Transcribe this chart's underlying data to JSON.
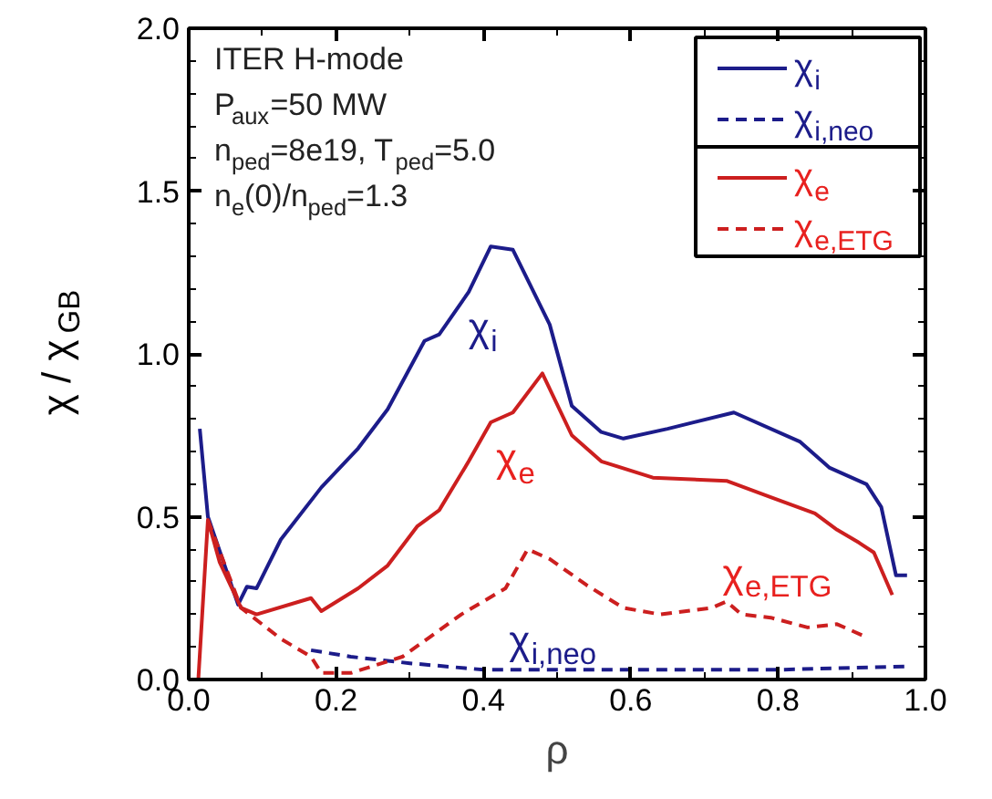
{
  "chart_data": {
    "type": "line",
    "xlabel": "ρ",
    "ylabel": "χ / χ$_{GB}$",
    "xlim": [
      0,
      1.0
    ],
    "ylim": [
      0,
      2.0
    ],
    "xticks": [
      {
        "value": 0,
        "label": "0.0"
      },
      0.2,
      0.4,
      0.6,
      0.8,
      {
        "value": 1.0,
        "label": "1.0"
      }
    ],
    "yticks": [
      {
        "value": 0,
        "label": "0.0"
      },
      0.5,
      {
        "value": 1.0,
        "label": "1.0"
      },
      1.5,
      {
        "value": 2.0,
        "label": "2.0"
      }
    ],
    "grid": false,
    "legend": "top right",
    "annotations": [
      "ITER H-mode",
      "P$_{aux}$=50 MW",
      "n$_{ped}$=8e19, T$_{ped}$=5.0",
      "n$_{e}$(0)/n$_{ped}$=1.3",
      {
        "text": "χ$_{i}$",
        "x": 0.345,
        "y": 1.08
      },
      {
        "text": "χ$_{e}$",
        "x": 0.3825,
        "y": 0.68
      },
      {
        "text": "χ$_{e,ETG}$",
        "x": 0.69,
        "y": 0.215
      },
      {
        "text": "χ$_{i,neo}$",
        "x": 0.4,
        "y": 0.03
      }
    ],
    "series": [
      {
        "name": "χ$_{i}$",
        "color": "#1c1c8a",
        "line_style": "solid",
        "x": [
          0.015,
          0.026,
          0.067,
          0.079,
          0.092,
          0.125,
          0.18,
          0.23,
          0.27,
          0.32,
          0.34,
          0.38,
          0.41,
          0.44,
          0.49,
          0.52,
          0.56,
          0.59,
          0.65,
          0.74,
          0.83,
          0.87,
          0.92,
          0.94,
          0.96,
          0.975
        ],
        "values": [
          0.77,
          0.5,
          0.23,
          0.285,
          0.28,
          0.43,
          0.59,
          0.71,
          0.83,
          1.04,
          1.06,
          1.19,
          1.33,
          1.32,
          1.09,
          0.84,
          0.76,
          0.74,
          0.77,
          0.82,
          0.73,
          0.65,
          0.6,
          0.53,
          0.32,
          0.32
        ]
      },
      {
        "name": "χ$_{i,neo}$",
        "color": "#1c1c8a",
        "line_style": "dashed",
        "x": [
          0.166,
          0.22,
          0.3,
          0.4,
          0.6,
          0.8,
          0.975
        ],
        "values": [
          0.09,
          0.07,
          0.05,
          0.03,
          0.03,
          0.03,
          0.04
        ]
      },
      {
        "name": "χ$_{e}$",
        "color": "#cc1f1f",
        "line_style": "solid",
        "x": [
          0.013,
          0.026,
          0.042,
          0.071,
          0.092,
          0.166,
          0.18,
          0.23,
          0.27,
          0.31,
          0.34,
          0.38,
          0.41,
          0.44,
          0.48,
          0.52,
          0.56,
          0.63,
          0.73,
          0.79,
          0.85,
          0.88,
          0.91,
          0.93,
          0.955
        ],
        "values": [
          0.0,
          0.49,
          0.36,
          0.22,
          0.2,
          0.25,
          0.21,
          0.28,
          0.35,
          0.47,
          0.52,
          0.67,
          0.79,
          0.82,
          0.94,
          0.75,
          0.67,
          0.62,
          0.61,
          0.56,
          0.51,
          0.46,
          0.42,
          0.39,
          0.26
        ]
      },
      {
        "name": "χ$_{e,ETG}$",
        "color": "#cc1f1f",
        "line_style": "dashed",
        "x": [
          0.026,
          0.071,
          0.125,
          0.166,
          0.18,
          0.22,
          0.29,
          0.37,
          0.43,
          0.46,
          0.49,
          0.54,
          0.59,
          0.64,
          0.71,
          0.73,
          0.75,
          0.79,
          0.84,
          0.88,
          0.92
        ],
        "values": [
          0.49,
          0.22,
          0.125,
          0.07,
          0.02,
          0.02,
          0.07,
          0.2,
          0.28,
          0.4,
          0.37,
          0.29,
          0.22,
          0.2,
          0.22,
          0.24,
          0.2,
          0.19,
          0.16,
          0.17,
          0.13
        ]
      }
    ]
  }
}
